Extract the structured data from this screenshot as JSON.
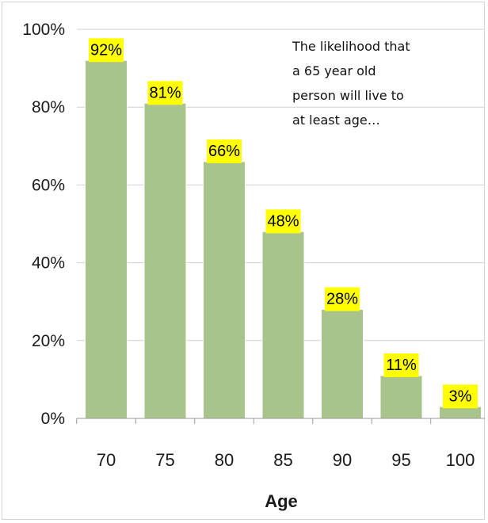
{
  "chart_data": {
    "type": "bar",
    "categories": [
      "70",
      "75",
      "80",
      "85",
      "90",
      "95",
      "100"
    ],
    "values": [
      92,
      81,
      66,
      48,
      28,
      11,
      3
    ],
    "data_labels": [
      "92%",
      "81%",
      "66%",
      "48%",
      "28%",
      "11%",
      "3%"
    ],
    "title": "",
    "xlabel": "Age",
    "ylabel": "",
    "ylim": [
      0,
      100
    ],
    "y_ticks": [
      0,
      20,
      40,
      60,
      80,
      100
    ],
    "y_tick_labels": [
      "0%",
      "20%",
      "40%",
      "60%",
      "80%",
      "100%"
    ],
    "grid": true,
    "annotation_lines": [
      "The likelihood that",
      "a 65 year old",
      "person will live to",
      "at least age…"
    ],
    "colors": {
      "bar": "#a9c48a",
      "bar_edge": "#ffffff",
      "label_bg": "#ffff00",
      "grid": "#d0d0d0",
      "axis": "#999999"
    }
  }
}
